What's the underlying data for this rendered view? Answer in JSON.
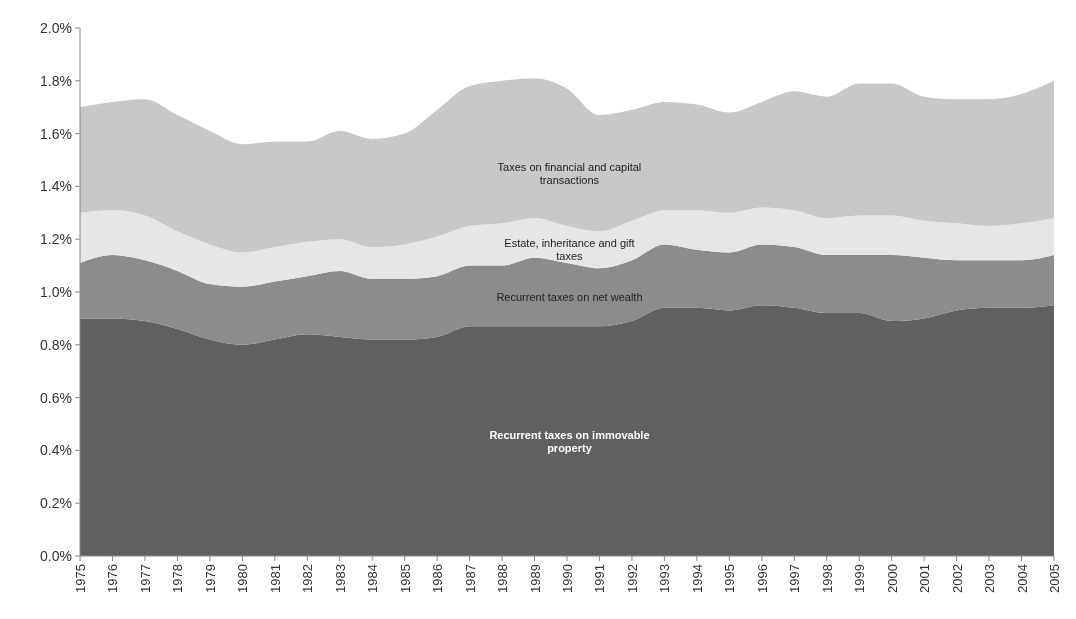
{
  "chart_data": {
    "type": "area",
    "stacked": true,
    "grid": false,
    "x": [
      1975,
      1976,
      1977,
      1978,
      1979,
      1980,
      1981,
      1982,
      1983,
      1984,
      1985,
      1986,
      1987,
      1988,
      1989,
      1990,
      1991,
      1992,
      1993,
      1994,
      1995,
      1996,
      1997,
      1998,
      1999,
      2000,
      2001,
      2002,
      2003,
      2004,
      2005
    ],
    "xlim": [
      1975,
      2005
    ],
    "xticks": [
      1975,
      1976,
      1977,
      1978,
      1979,
      1980,
      1981,
      1982,
      1983,
      1984,
      1985,
      1986,
      1987,
      1988,
      1989,
      1990,
      1991,
      1992,
      1993,
      1994,
      1995,
      1996,
      1997,
      1998,
      1999,
      2000,
      2001,
      2002,
      2003,
      2004,
      2005
    ],
    "ylim": [
      0,
      2.0
    ],
    "yticks": [
      {
        "value": 0,
        "label": "0.0%"
      },
      {
        "value": 0.2,
        "label": "0.2%"
      },
      {
        "value": 0.4,
        "label": "0.4%"
      },
      {
        "value": 0.6,
        "label": "0.6%"
      },
      {
        "value": 0.8,
        "label": "0.8%"
      },
      {
        "value": 1.0,
        "label": "1.0%"
      },
      {
        "value": 1.2,
        "label": "1.2%"
      },
      {
        "value": 1.4,
        "label": "1.4%"
      },
      {
        "value": 1.6,
        "label": "1.6%"
      },
      {
        "value": 1.8,
        "label": "1.8%"
      },
      {
        "value": 2.0,
        "label": "2.0%"
      }
    ],
    "series": [
      {
        "name": "Recurrent taxes on immovable property",
        "color": "#606060",
        "values": [
          0.9,
          0.9,
          0.89,
          0.86,
          0.82,
          0.8,
          0.82,
          0.84,
          0.83,
          0.82,
          0.82,
          0.83,
          0.87,
          0.87,
          0.87,
          0.87,
          0.87,
          0.89,
          0.94,
          0.94,
          0.93,
          0.95,
          0.94,
          0.92,
          0.92,
          0.89,
          0.9,
          0.93,
          0.94,
          0.94,
          0.95
        ]
      },
      {
        "name": "Recurrent taxes on net wealth",
        "color": "#8c8c8c",
        "values": [
          0.21,
          0.24,
          0.23,
          0.22,
          0.21,
          0.22,
          0.22,
          0.22,
          0.25,
          0.23,
          0.23,
          0.23,
          0.23,
          0.23,
          0.26,
          0.24,
          0.22,
          0.23,
          0.24,
          0.22,
          0.22,
          0.23,
          0.23,
          0.22,
          0.22,
          0.25,
          0.23,
          0.19,
          0.18,
          0.18,
          0.19
        ]
      },
      {
        "name": "Estate, inheritance and gift taxes",
        "color": "#e6e6e6",
        "values": [
          0.19,
          0.17,
          0.17,
          0.15,
          0.15,
          0.13,
          0.13,
          0.13,
          0.12,
          0.12,
          0.13,
          0.15,
          0.15,
          0.16,
          0.15,
          0.14,
          0.14,
          0.15,
          0.13,
          0.15,
          0.15,
          0.14,
          0.14,
          0.14,
          0.15,
          0.15,
          0.14,
          0.14,
          0.13,
          0.14,
          0.14
        ]
      },
      {
        "name": "Taxes on financial and capital transactions",
        "color": "#c8c8c8",
        "values": [
          0.4,
          0.41,
          0.44,
          0.44,
          0.43,
          0.41,
          0.4,
          0.38,
          0.41,
          0.41,
          0.42,
          0.48,
          0.53,
          0.54,
          0.53,
          0.52,
          0.44,
          0.42,
          0.41,
          0.4,
          0.38,
          0.4,
          0.45,
          0.46,
          0.5,
          0.5,
          0.47,
          0.47,
          0.48,
          0.49,
          0.52
        ]
      }
    ]
  }
}
